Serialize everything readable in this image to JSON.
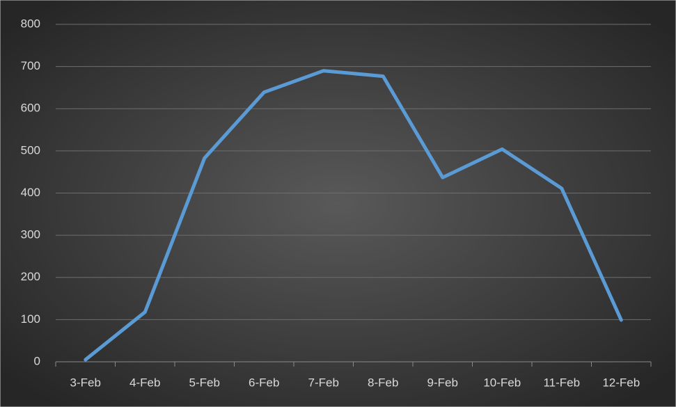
{
  "chart_data": {
    "type": "line",
    "categories": [
      "3-Feb",
      "4-Feb",
      "5-Feb",
      "6-Feb",
      "7-Feb",
      "8-Feb",
      "9-Feb",
      "10-Feb",
      "11-Feb",
      "12-Feb"
    ],
    "series": [
      {
        "color": "#5b9bd5",
        "values": [
          5,
          118,
          483,
          639,
          690,
          677,
          437,
          504,
          411,
          99
        ]
      }
    ],
    "ylim": [
      0,
      800
    ],
    "yticks": [
      0,
      100,
      200,
      300,
      400,
      500,
      600,
      700,
      800
    ],
    "grid": true
  }
}
